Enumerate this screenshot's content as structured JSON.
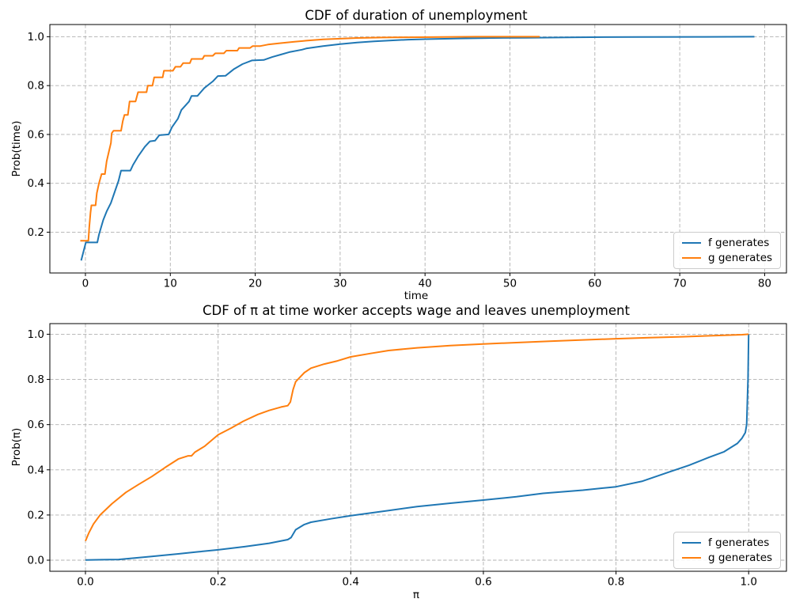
{
  "figure": {
    "background": "#ffffff"
  },
  "colors": {
    "f_line": "#1f77b4",
    "g_line": "#ff7f0e",
    "grid": "#b0b0b0",
    "spine": "#000000",
    "text": "#000000"
  },
  "chart_data": [
    {
      "type": "line",
      "title": "CDF of duration of unemployment",
      "xlabel": "time",
      "ylabel": "Prob(time)",
      "xlim": [
        -4.19,
        82.57
      ],
      "ylim": [
        0.033,
        1.05
      ],
      "xticks": [
        0,
        10,
        20,
        30,
        40,
        50,
        60,
        70,
        80
      ],
      "xtick_labels": [
        "0",
        "10",
        "20",
        "30",
        "40",
        "50",
        "60",
        "70",
        "80"
      ],
      "yticks": [
        0.2,
        0.4,
        0.6,
        0.8,
        1.0
      ],
      "ytick_labels": [
        "0.2",
        "0.4",
        "0.6",
        "0.8",
        "1.0"
      ],
      "grid": true,
      "legend_loc": "lower right",
      "series": [
        {
          "name": "f generates",
          "color": "#1f77b4",
          "points": [
            [
              -0.5,
              0.084
            ],
            [
              0.05,
              0.158
            ],
            [
              1.4,
              0.158
            ],
            [
              1.6,
              0.19
            ],
            [
              2.1,
              0.25
            ],
            [
              2.5,
              0.285
            ],
            [
              3.0,
              0.32
            ],
            [
              3.5,
              0.37
            ],
            [
              3.9,
              0.41
            ],
            [
              4.2,
              0.452
            ],
            [
              5.3,
              0.452
            ],
            [
              5.6,
              0.475
            ],
            [
              6.2,
              0.51
            ],
            [
              7.0,
              0.55
            ],
            [
              7.6,
              0.572
            ],
            [
              8.2,
              0.575
            ],
            [
              8.7,
              0.597
            ],
            [
              9.8,
              0.6
            ],
            [
              10.2,
              0.63
            ],
            [
              10.9,
              0.665
            ],
            [
              11.3,
              0.7
            ],
            [
              12.2,
              0.735
            ],
            [
              12.5,
              0.758
            ],
            [
              13.2,
              0.758
            ],
            [
              14.0,
              0.79
            ],
            [
              15.0,
              0.817
            ],
            [
              15.6,
              0.839
            ],
            [
              16.5,
              0.84
            ],
            [
              17.5,
              0.868
            ],
            [
              18.5,
              0.888
            ],
            [
              19.6,
              0.903
            ],
            [
              21.0,
              0.905
            ],
            [
              22,
              0.917
            ],
            [
              23,
              0.927
            ],
            [
              24,
              0.937
            ],
            [
              25.5,
              0.947
            ],
            [
              26,
              0.952
            ],
            [
              28,
              0.962
            ],
            [
              30,
              0.97
            ],
            [
              32,
              0.976
            ],
            [
              34,
              0.981
            ],
            [
              36,
              0.985
            ],
            [
              38,
              0.988
            ],
            [
              40,
              0.99
            ],
            [
              44,
              0.993
            ],
            [
              48,
              0.995
            ],
            [
              52,
              0.996
            ],
            [
              58,
              0.998
            ],
            [
              65,
              0.999
            ],
            [
              72,
              0.9995
            ],
            [
              78.8,
              1.0
            ]
          ]
        },
        {
          "name": "g generates",
          "color": "#ff7f0e",
          "points": [
            [
              -0.6,
              0.165
            ],
            [
              0.35,
              0.165
            ],
            [
              0.45,
              0.22
            ],
            [
              0.6,
              0.28
            ],
            [
              0.7,
              0.31
            ],
            [
              1.2,
              0.31
            ],
            [
              1.35,
              0.36
            ],
            [
              1.6,
              0.4
            ],
            [
              1.9,
              0.438
            ],
            [
              2.3,
              0.438
            ],
            [
              2.5,
              0.49
            ],
            [
              2.8,
              0.535
            ],
            [
              3.0,
              0.565
            ],
            [
              3.1,
              0.605
            ],
            [
              3.3,
              0.615
            ],
            [
              4.2,
              0.615
            ],
            [
              4.4,
              0.655
            ],
            [
              4.6,
              0.68
            ],
            [
              5.0,
              0.68
            ],
            [
              5.2,
              0.735
            ],
            [
              5.9,
              0.735
            ],
            [
              6.2,
              0.773
            ],
            [
              7.2,
              0.773
            ],
            [
              7.35,
              0.8
            ],
            [
              7.9,
              0.8
            ],
            [
              8.1,
              0.834
            ],
            [
              9.1,
              0.834
            ],
            [
              9.25,
              0.861
            ],
            [
              10.3,
              0.861
            ],
            [
              10.6,
              0.877
            ],
            [
              11.2,
              0.877
            ],
            [
              11.5,
              0.892
            ],
            [
              12.3,
              0.892
            ],
            [
              12.5,
              0.909
            ],
            [
              13.8,
              0.909
            ],
            [
              14.0,
              0.922
            ],
            [
              15.0,
              0.922
            ],
            [
              15.3,
              0.932
            ],
            [
              16.3,
              0.932
            ],
            [
              16.6,
              0.943
            ],
            [
              17.9,
              0.943
            ],
            [
              18.1,
              0.954
            ],
            [
              19.4,
              0.954
            ],
            [
              19.7,
              0.962
            ],
            [
              20.6,
              0.962
            ],
            [
              21.5,
              0.968
            ],
            [
              23,
              0.974
            ],
            [
              24.5,
              0.979
            ],
            [
              26,
              0.984
            ],
            [
              28,
              0.989
            ],
            [
              30,
              0.992
            ],
            [
              32,
              0.995
            ],
            [
              35,
              0.997
            ],
            [
              38,
              0.998
            ],
            [
              42,
              0.999
            ],
            [
              46,
              1.0
            ],
            [
              53.5,
              1.0
            ]
          ]
        }
      ]
    },
    {
      "type": "line",
      "title": "CDF of π at time worker accepts wage and leaves unemployment",
      "xlabel": "π",
      "ylabel": "Prob(π)",
      "xlim": [
        -0.0537,
        1.057
      ],
      "ylim": [
        -0.049,
        1.047
      ],
      "xticks": [
        0.0,
        0.2,
        0.4,
        0.6,
        0.8,
        1.0
      ],
      "xtick_labels": [
        "0.0",
        "0.2",
        "0.4",
        "0.6",
        "0.8",
        "1.0"
      ],
      "yticks": [
        0.0,
        0.2,
        0.4,
        0.6,
        0.8,
        1.0
      ],
      "ytick_labels": [
        "0.0",
        "0.2",
        "0.4",
        "0.6",
        "0.8",
        "1.0"
      ],
      "grid": true,
      "legend_loc": "lower right",
      "series": [
        {
          "name": "f generates",
          "color": "#1f77b4",
          "points": [
            [
              0,
              0.001
            ],
            [
              0.05,
              0.003
            ],
            [
              0.1,
              0.017
            ],
            [
              0.14,
              0.028
            ],
            [
              0.17,
              0.037
            ],
            [
              0.2,
              0.046
            ],
            [
              0.24,
              0.06
            ],
            [
              0.277,
              0.075
            ],
            [
              0.305,
              0.091
            ],
            [
              0.31,
              0.1
            ],
            [
              0.317,
              0.135
            ],
            [
              0.33,
              0.158
            ],
            [
              0.34,
              0.168
            ],
            [
              0.37,
              0.183
            ],
            [
              0.4,
              0.197
            ],
            [
              0.457,
              0.22
            ],
            [
              0.5,
              0.237
            ],
            [
              0.55,
              0.252
            ],
            [
              0.6,
              0.266
            ],
            [
              0.65,
              0.281
            ],
            [
              0.69,
              0.296
            ],
            [
              0.75,
              0.31
            ],
            [
              0.8,
              0.325
            ],
            [
              0.84,
              0.35
            ],
            [
              0.88,
              0.39
            ],
            [
              0.91,
              0.42
            ],
            [
              0.94,
              0.455
            ],
            [
              0.963,
              0.48
            ],
            [
              0.983,
              0.517
            ],
            [
              0.99,
              0.54
            ],
            [
              0.995,
              0.565
            ],
            [
              0.997,
              0.6
            ],
            [
              0.999,
              0.8
            ],
            [
              1.0,
              1.0
            ]
          ]
        },
        {
          "name": "g generates",
          "color": "#ff7f0e",
          "points": [
            [
              0,
              0.085
            ],
            [
              0.005,
              0.12
            ],
            [
              0.012,
              0.16
            ],
            [
              0.022,
              0.2
            ],
            [
              0.04,
              0.25
            ],
            [
              0.061,
              0.3
            ],
            [
              0.08,
              0.335
            ],
            [
              0.1,
              0.37
            ],
            [
              0.12,
              0.41
            ],
            [
              0.14,
              0.448
            ],
            [
              0.155,
              0.462
            ],
            [
              0.16,
              0.462
            ],
            [
              0.165,
              0.478
            ],
            [
              0.18,
              0.505
            ],
            [
              0.2,
              0.555
            ],
            [
              0.22,
              0.585
            ],
            [
              0.238,
              0.615
            ],
            [
              0.26,
              0.645
            ],
            [
              0.277,
              0.663
            ],
            [
              0.295,
              0.678
            ],
            [
              0.305,
              0.684
            ],
            [
              0.309,
              0.7
            ],
            [
              0.313,
              0.755
            ],
            [
              0.317,
              0.79
            ],
            [
              0.33,
              0.83
            ],
            [
              0.34,
              0.85
            ],
            [
              0.36,
              0.868
            ],
            [
              0.38,
              0.882
            ],
            [
              0.4,
              0.9
            ],
            [
              0.43,
              0.915
            ],
            [
              0.457,
              0.928
            ],
            [
              0.5,
              0.94
            ],
            [
              0.55,
              0.95
            ],
            [
              0.6,
              0.957
            ],
            [
              0.65,
              0.963
            ],
            [
              0.7,
              0.969
            ],
            [
              0.75,
              0.975
            ],
            [
              0.8,
              0.98
            ],
            [
              0.85,
              0.985
            ],
            [
              0.9,
              0.989
            ],
            [
              0.95,
              0.994
            ],
            [
              0.99,
              0.998
            ],
            [
              1.0,
              1.0
            ]
          ]
        }
      ]
    }
  ]
}
